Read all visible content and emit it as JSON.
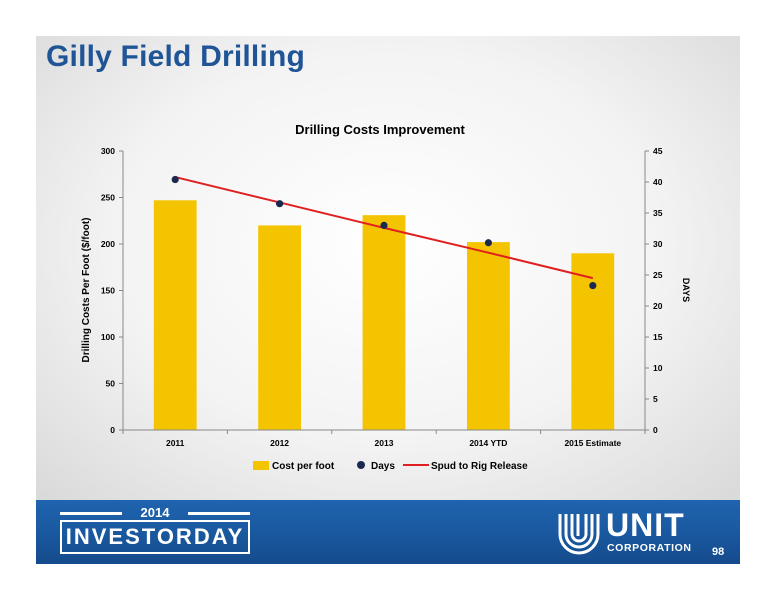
{
  "slide": {
    "title": "Gilly Field Drilling",
    "page_number": "98"
  },
  "footer": {
    "event_year": "2014",
    "event_name": "INVESTORDAY",
    "company_name": "UNIT",
    "company_suffix": "CORPORATION"
  },
  "colors": {
    "title": "#1f5496",
    "bars": "#f5c400",
    "days_points": "#1a2a4f",
    "trend_line": "#e02020",
    "footer": "#1a5aa2"
  },
  "chart_data": {
    "type": "bar",
    "title": "Drilling Costs Improvement",
    "categories": [
      "2011",
      "2012",
      "2013",
      "2014 YTD",
      "2015 Estimate"
    ],
    "ylabel": "Drilling Costs Per Foot ($/foot)",
    "y2label": "DAYS",
    "ylim": [
      0,
      300
    ],
    "y2lim": [
      0,
      45
    ],
    "yticks": [
      0,
      50,
      100,
      150,
      200,
      250,
      300
    ],
    "y2ticks": [
      0,
      5,
      10,
      15,
      20,
      25,
      30,
      35,
      40,
      45
    ],
    "grid": false,
    "legend_position": "bottom",
    "series": [
      {
        "name": "Cost per foot",
        "type": "bar",
        "axis": "left",
        "values": [
          247,
          220,
          231,
          202,
          190
        ]
      },
      {
        "name": "Days",
        "type": "scatter",
        "axis": "right",
        "values": [
          40.4,
          36.5,
          33.0,
          30.2,
          23.3
        ]
      },
      {
        "name": "Spud to Rig Release",
        "type": "line",
        "axis": "right",
        "values": [
          40.8,
          36.7,
          32.6,
          28.6,
          24.5
        ]
      }
    ]
  }
}
